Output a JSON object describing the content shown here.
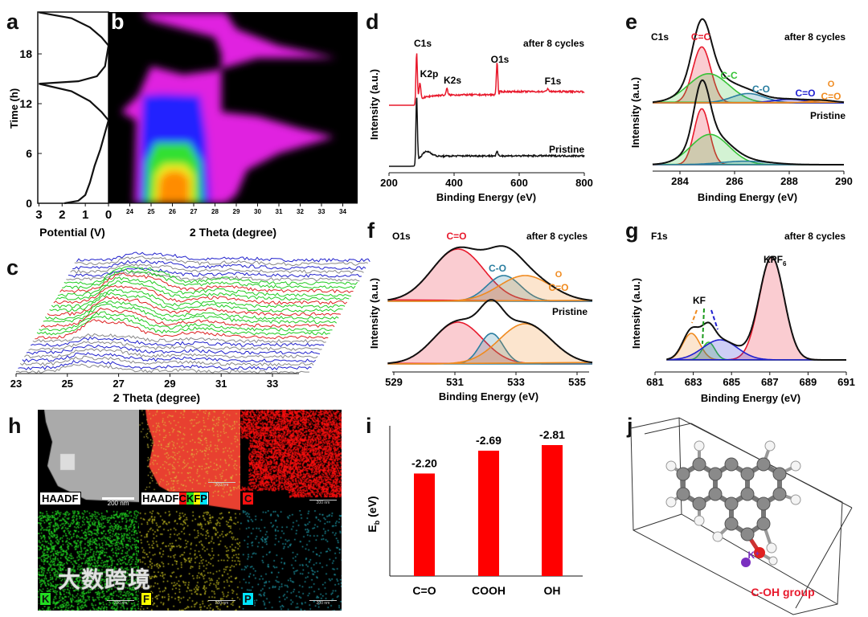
{
  "panel_labels": [
    "a",
    "b",
    "c",
    "d",
    "e",
    "f",
    "g",
    "h",
    "i",
    "j"
  ],
  "colors": {
    "red": "#e8192c",
    "green": "#36c236",
    "teal": "#2a7ea0",
    "blue": "#2020d0",
    "orange": "#f08a1e",
    "black": "#111111",
    "purple": "#7a2fc0"
  },
  "chart_data": [
    {
      "panel": "a",
      "type": "line",
      "xlabel": "Potential (V)",
      "ylabel": "Time (h)",
      "xlim": [
        3,
        0
      ],
      "ylim": [
        0,
        23
      ],
      "xticks": [
        "3",
        "2",
        "1",
        "0"
      ],
      "yticks": [
        "0",
        "6",
        "12",
        "18"
      ],
      "points": [
        [
          1.9,
          0
        ],
        [
          1.3,
          0.3
        ],
        [
          1.0,
          1
        ],
        [
          0.8,
          2.5
        ],
        [
          0.6,
          4.5
        ],
        [
          0.35,
          6.5
        ],
        [
          0.15,
          8.5
        ],
        [
          0,
          10
        ],
        [
          0.3,
          11
        ],
        [
          0.8,
          12.3
        ],
        [
          1.6,
          13.5
        ],
        [
          3,
          14.4
        ],
        [
          1.3,
          14.7
        ],
        [
          0.5,
          15.3
        ],
        [
          0.15,
          16.5
        ],
        [
          0,
          19
        ],
        [
          0.3,
          20
        ],
        [
          0.8,
          21.2
        ],
        [
          1.6,
          22.3
        ],
        [
          3,
          23
        ]
      ]
    },
    {
      "panel": "b",
      "type": "heatmap",
      "xlabel": "2 Theta (degree)",
      "xlim": [
        23,
        34.5
      ],
      "ylim": [
        0,
        23
      ],
      "xticks": [
        "24",
        "25",
        "26",
        "27",
        "28",
        "29",
        "30",
        "31",
        "32",
        "33",
        "34"
      ],
      "colorscale": [
        "black",
        "magenta",
        "blue",
        "green",
        "yellow",
        "orange"
      ],
      "note": "intensity max near 25.3-26.8 degree at 0-4 h"
    },
    {
      "panel": "c",
      "type": "line",
      "xlabel": "2 Theta (degree)",
      "xlim": [
        23,
        34.5
      ],
      "xticks": [
        "23",
        "25",
        "27",
        "29",
        "31",
        "33"
      ],
      "series_count": 30
    },
    {
      "panel": "d",
      "type": "line",
      "xlabel": "Binding Energy (eV)",
      "ylabel": "Intensity (a.u.)",
      "xlim": [
        200,
        800
      ],
      "xticks": [
        "200",
        "400",
        "600",
        "800"
      ],
      "series": [
        {
          "name": "after 8 cycles",
          "color": "red",
          "peaks": [
            {
              "label": "C1s",
              "x": 285,
              "h": 60
            },
            {
              "label": "K2p",
              "x": 295,
              "h": 20
            },
            {
              "label": "K2s",
              "x": 378,
              "h": 8
            },
            {
              "label": "O1s",
              "x": 532,
              "h": 40
            },
            {
              "label": "F1s",
              "x": 688,
              "h": 4
            }
          ]
        },
        {
          "name": "Pristine",
          "color": "black",
          "peaks": [
            {
              "label": "",
              "x": 285,
              "h": 80
            },
            {
              "label": "",
              "x": 315,
              "h": 8
            },
            {
              "label": "",
              "x": 532,
              "h": 5
            }
          ]
        }
      ]
    },
    {
      "panel": "e",
      "type": "line",
      "title": "C1s",
      "xlabel": "Binding Energy (eV)",
      "ylabel": "Intensity (a.u.)",
      "xlim": [
        283,
        290
      ],
      "xticks": [
        "284",
        "286",
        "288",
        "290"
      ],
      "stacks": [
        {
          "name": "after 8 cycles",
          "components": [
            {
              "label": "C=C",
              "color": "red",
              "c": 284.8,
              "a": 48,
              "s": 0.33
            },
            {
              "label": "C-C",
              "color": "green",
              "c": 285.05,
              "a": 25,
              "s": 0.75
            },
            {
              "label": "C-O",
              "color": "teal",
              "c": 286.5,
              "a": 8,
              "s": 0.6
            },
            {
              "label": "C=O",
              "color": "blue",
              "c": 288,
              "a": 3,
              "s": 0.6
            },
            {
              "label": "O-C=O",
              "color": "orange",
              "c": 289.2,
              "a": 2,
              "s": 0.5
            }
          ]
        },
        {
          "name": "Pristine",
          "components": [
            {
              "label": "C=C",
              "color": "red",
              "c": 284.8,
              "a": 48,
              "s": 0.28
            },
            {
              "label": "C-C",
              "color": "green",
              "c": 285.1,
              "a": 26,
              "s": 0.7
            },
            {
              "label": "C-O",
              "color": "teal",
              "c": 286.4,
              "a": 3,
              "s": 0.9
            }
          ]
        }
      ]
    },
    {
      "panel": "f",
      "type": "line",
      "title": "O1s",
      "xlabel": "Binding Energy (eV)",
      "ylabel": "Intensity (a.u.)",
      "xlim": [
        528.8,
        535.5
      ],
      "xticks": [
        "529",
        "531",
        "533",
        "535"
      ],
      "stacks": [
        {
          "name": "after 8 cycles",
          "components": [
            {
              "label": "C=O",
              "color": "red",
              "c": 531.1,
              "a": 65,
              "s": 0.85
            },
            {
              "label": "C-O",
              "color": "teal",
              "c": 532.6,
              "a": 32,
              "s": 0.55
            },
            {
              "label": "O-C=O",
              "color": "orange",
              "c": 533.3,
              "a": 32,
              "s": 0.85
            }
          ]
        },
        {
          "name": "Pristine",
          "components": [
            {
              "label": "C=O",
              "color": "red",
              "c": 531.1,
              "a": 52,
              "s": 0.8
            },
            {
              "label": "C-O",
              "color": "teal",
              "c": 532.2,
              "a": 38,
              "s": 0.38
            },
            {
              "label": "O-C=O",
              "color": "orange",
              "c": 533.3,
              "a": 50,
              "s": 0.85
            }
          ]
        }
      ]
    },
    {
      "panel": "g",
      "type": "line",
      "title": "F1s",
      "series_label": "after 8 cycles",
      "xlabel": "Binding Energy (eV)",
      "ylabel": "Intensity (a.u.)",
      "xlim": [
        681,
        691
      ],
      "xticks": [
        "681",
        "683",
        "685",
        "687",
        "689",
        "691"
      ],
      "components": [
        {
          "label": "KPF6",
          "color": "red",
          "c": 687.1,
          "a": 128,
          "s": 0.65
        },
        {
          "label": "KF",
          "color": "orange",
          "c": 682.9,
          "a": 33,
          "s": 0.45
        },
        {
          "label": "KF",
          "color": "green",
          "c": 683.8,
          "a": 22,
          "s": 0.33
        },
        {
          "label": "KF",
          "color": "blue",
          "c": 684.4,
          "a": 25,
          "s": 0.9
        }
      ]
    },
    {
      "panel": "i",
      "type": "bar",
      "ylabel": "E_b (eV)",
      "categories": [
        "C=O",
        "COOH",
        "OH"
      ],
      "values": [
        -2.2,
        -2.69,
        -2.81
      ],
      "labels": [
        "-2.20",
        "-2.69",
        "-2.81"
      ],
      "color": "#ff0000"
    }
  ],
  "text": {
    "a_ylabel": "Time (h)",
    "a_xlabel": "Potential (V)",
    "b_xlabel": "2 Theta (degree)",
    "c_xlabel": "2 Theta (degree)",
    "after": "after 8 cycles",
    "pristine": "Pristine",
    "intensity": "Intensity (a.u.)",
    "be": "Binding Energy (eV)",
    "c1s": "C1s",
    "k2p": "K2p",
    "k2s": "K2s",
    "o1s": "O1s",
    "f1s": "F1s",
    "cc_double": "C=C",
    "cc_single": "C-C",
    "co_single": "C-O",
    "co_double": "C=O",
    "ocoo_o": "O",
    "ocoo": "C=O",
    "kf": "KF",
    "kpf": "KPF",
    "kpf_sub": "6",
    "i_ylabel": "E",
    "i_ylabel_sub": "b",
    "i_ylabel_unit": " (eV)",
    "j_kplus": "K⁺",
    "j_label": "C-OH group"
  },
  "h": {
    "haadf": "HAADF",
    "scale": "200 nm",
    "elements": [
      "C",
      "K",
      "F",
      "P"
    ],
    "element_colors": [
      "#ff1010",
      "#22dd22",
      "#ffff00",
      "#00e5ff"
    ],
    "watermark": "大数跨境"
  }
}
